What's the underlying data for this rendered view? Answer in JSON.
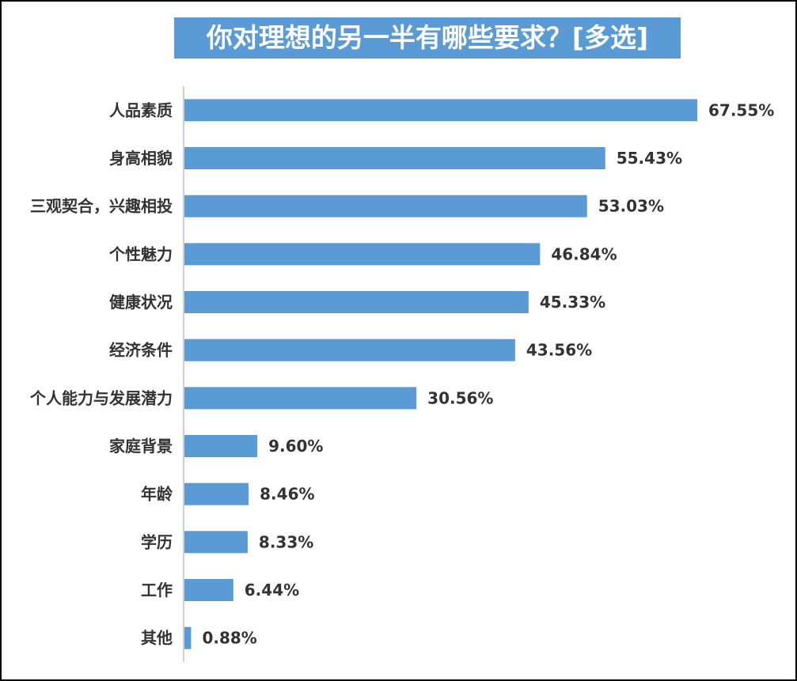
{
  "chart_data": {
    "type": "bar",
    "orientation": "horizontal",
    "title": "你对理想的另一半有哪些要求？[多选]",
    "xlabel": "",
    "ylabel": "",
    "xlim": [
      0,
      70
    ],
    "grid": false,
    "legend": "none",
    "categories": [
      "人品素质",
      "身高相貌",
      "三观契合，兴趣相投",
      "个性魅力",
      "健康状况",
      "经济条件",
      "个人能力与发展潜力",
      "家庭背景",
      "年龄",
      "学历",
      "工作",
      "其他"
    ],
    "values": [
      67.55,
      55.43,
      53.03,
      46.84,
      45.33,
      43.56,
      30.56,
      9.6,
      8.46,
      8.33,
      6.44,
      0.88
    ],
    "value_labels": [
      "67.55%",
      "55.43%",
      "53.03%",
      "46.84%",
      "45.33%",
      "43.56%",
      "30.56%",
      "9.60%",
      "8.46%",
      "8.33%",
      "6.44%",
      "0.88%"
    ],
    "colors": {
      "bar": "#5b9bd5",
      "title_bg": "#5b9bd5",
      "title_text": "#ffffff",
      "axis": "#bfbfbf",
      "text": "#333333"
    }
  }
}
